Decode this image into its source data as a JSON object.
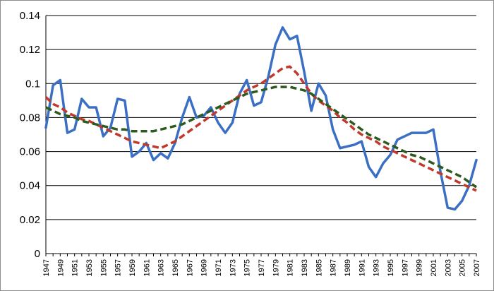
{
  "chart_data": {
    "type": "line",
    "title": "",
    "xlabel": "",
    "ylabel": "",
    "ylim": [
      0,
      0.14
    ],
    "y_ticks": [
      0,
      0.02,
      0.04,
      0.06,
      0.08,
      0.1,
      0.12,
      0.14
    ],
    "y_tick_labels": [
      "0",
      "0.02",
      "0.04",
      "0.06",
      "0.08",
      "0.1",
      "0.12",
      "0.14"
    ],
    "x": [
      1947,
      1948,
      1949,
      1950,
      1951,
      1952,
      1953,
      1954,
      1955,
      1956,
      1957,
      1958,
      1959,
      1960,
      1961,
      1962,
      1963,
      1964,
      1965,
      1966,
      1967,
      1968,
      1969,
      1970,
      1971,
      1972,
      1973,
      1974,
      1975,
      1976,
      1977,
      1978,
      1979,
      1980,
      1981,
      1982,
      1983,
      1984,
      1985,
      1986,
      1987,
      1988,
      1989,
      1990,
      1991,
      1992,
      1993,
      1994,
      1995,
      1996,
      1997,
      1998,
      1999,
      2000,
      2001,
      2002,
      2003,
      2004,
      2005,
      2006,
      2007
    ],
    "x_tick_labels": [
      "1947",
      "1949",
      "1951",
      "1953",
      "1955",
      "1957",
      "1959",
      "1961",
      "1963",
      "1965",
      "1967",
      "1969",
      "1971",
      "1973",
      "1975",
      "1977",
      "1979",
      "1981",
      "1983",
      "1985",
      "1987",
      "1989",
      "1991",
      "1993",
      "1995",
      "1997",
      "1999",
      "2001",
      "2003",
      "2005",
      "2007"
    ],
    "grid": true,
    "legend": "none",
    "series": [
      {
        "color": "#3a6fc4",
        "style": "solid",
        "values": [
          0.074,
          0.099,
          0.102,
          0.071,
          0.073,
          0.091,
          0.086,
          0.086,
          0.069,
          0.074,
          0.091,
          0.09,
          0.057,
          0.06,
          0.065,
          0.055,
          0.059,
          0.056,
          0.065,
          0.08,
          0.092,
          0.08,
          0.081,
          0.086,
          0.077,
          0.071,
          0.077,
          0.094,
          0.102,
          0.087,
          0.089,
          0.104,
          0.123,
          0.133,
          0.126,
          0.128,
          0.107,
          0.084,
          0.1,
          0.093,
          0.073,
          0.062,
          0.063,
          0.064,
          0.066,
          0.051,
          0.045,
          0.053,
          0.058,
          0.067,
          0.069,
          0.071,
          0.071,
          0.071,
          0.073,
          0.048,
          0.027,
          0.026,
          0.031,
          0.04,
          0.055
        ]
      },
      {
        "color": "#c0392b",
        "style": "dashed",
        "values": [
          0.092,
          0.088,
          0.086,
          0.083,
          0.081,
          0.079,
          0.078,
          0.076,
          0.074,
          0.072,
          0.07,
          0.068,
          0.066,
          0.065,
          0.064,
          0.063,
          0.062,
          0.064,
          0.066,
          0.069,
          0.072,
          0.075,
          0.078,
          0.081,
          0.084,
          0.087,
          0.09,
          0.093,
          0.096,
          0.098,
          0.1,
          0.103,
          0.106,
          0.109,
          0.11,
          0.106,
          0.1,
          0.094,
          0.09,
          0.087,
          0.084,
          0.08,
          0.077,
          0.073,
          0.07,
          0.068,
          0.066,
          0.063,
          0.061,
          0.059,
          0.057,
          0.055,
          0.053,
          0.051,
          0.049,
          0.047,
          0.045,
          0.043,
          0.041,
          0.039,
          0.037
        ]
      },
      {
        "color": "#2d5a1e",
        "style": "dashed",
        "values": [
          0.086,
          0.084,
          0.082,
          0.081,
          0.08,
          0.078,
          0.077,
          0.076,
          0.075,
          0.074,
          0.073,
          0.073,
          0.072,
          0.072,
          0.072,
          0.072,
          0.073,
          0.074,
          0.075,
          0.076,
          0.078,
          0.08,
          0.082,
          0.084,
          0.086,
          0.088,
          0.09,
          0.092,
          0.094,
          0.095,
          0.096,
          0.097,
          0.098,
          0.098,
          0.098,
          0.097,
          0.096,
          0.094,
          0.091,
          0.088,
          0.085,
          0.082,
          0.079,
          0.076,
          0.073,
          0.07,
          0.068,
          0.066,
          0.064,
          0.062,
          0.06,
          0.058,
          0.057,
          0.055,
          0.053,
          0.051,
          0.049,
          0.047,
          0.045,
          0.042,
          0.039
        ]
      }
    ]
  }
}
